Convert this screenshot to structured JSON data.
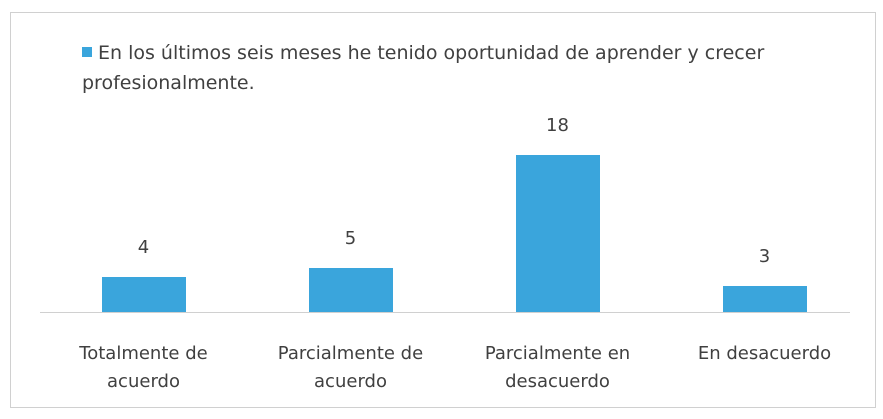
{
  "chart_data": {
    "type": "bar",
    "series": [
      {
        "name": "En los últimos seis meses he tenido oportunidad de aprender y crecer profesionalmente.",
        "color": "#3aa5dc",
        "values": [
          4,
          5,
          18,
          3
        ]
      }
    ],
    "categories": [
      "Totalmente de acuerdo",
      "Parcialmente de acuerdo",
      "Parcialmente en desacuerdo",
      "En desacuerdo"
    ]
  }
}
